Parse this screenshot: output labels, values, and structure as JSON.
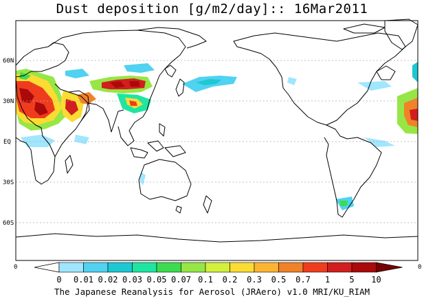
{
  "map": {
    "title": "Dust deposition [g/m2/day]:: 16Mar2011",
    "lat_labels": [
      "60N",
      "30N",
      "EQ",
      "30S",
      "60S"
    ],
    "axis_left": "0",
    "axis_right": "0",
    "credit": "The Japanese Reanalysis for Aerosol (JRAero) v1.0 MRI/KU_RIAM"
  },
  "colorbar": {
    "labels": [
      "0",
      "0.01",
      "0.02",
      "0.03",
      "0.05",
      "0.07",
      "0.1",
      "0.2",
      "0.3",
      "0.5",
      "0.7",
      "1",
      "5",
      "10"
    ],
    "colors": [
      "#ffffff",
      "#a0e6ff",
      "#50d2f0",
      "#1ec8d2",
      "#1ee6a0",
      "#3cdc50",
      "#96e646",
      "#d2f03c",
      "#fadc32",
      "#fab432",
      "#f08228",
      "#f03c1e",
      "#d21e1e",
      "#aa0a0a",
      "#780000"
    ]
  },
  "colors": {
    "coastline": "#000000",
    "gridline": "#aaaaaa",
    "frame": "#000000"
  }
}
